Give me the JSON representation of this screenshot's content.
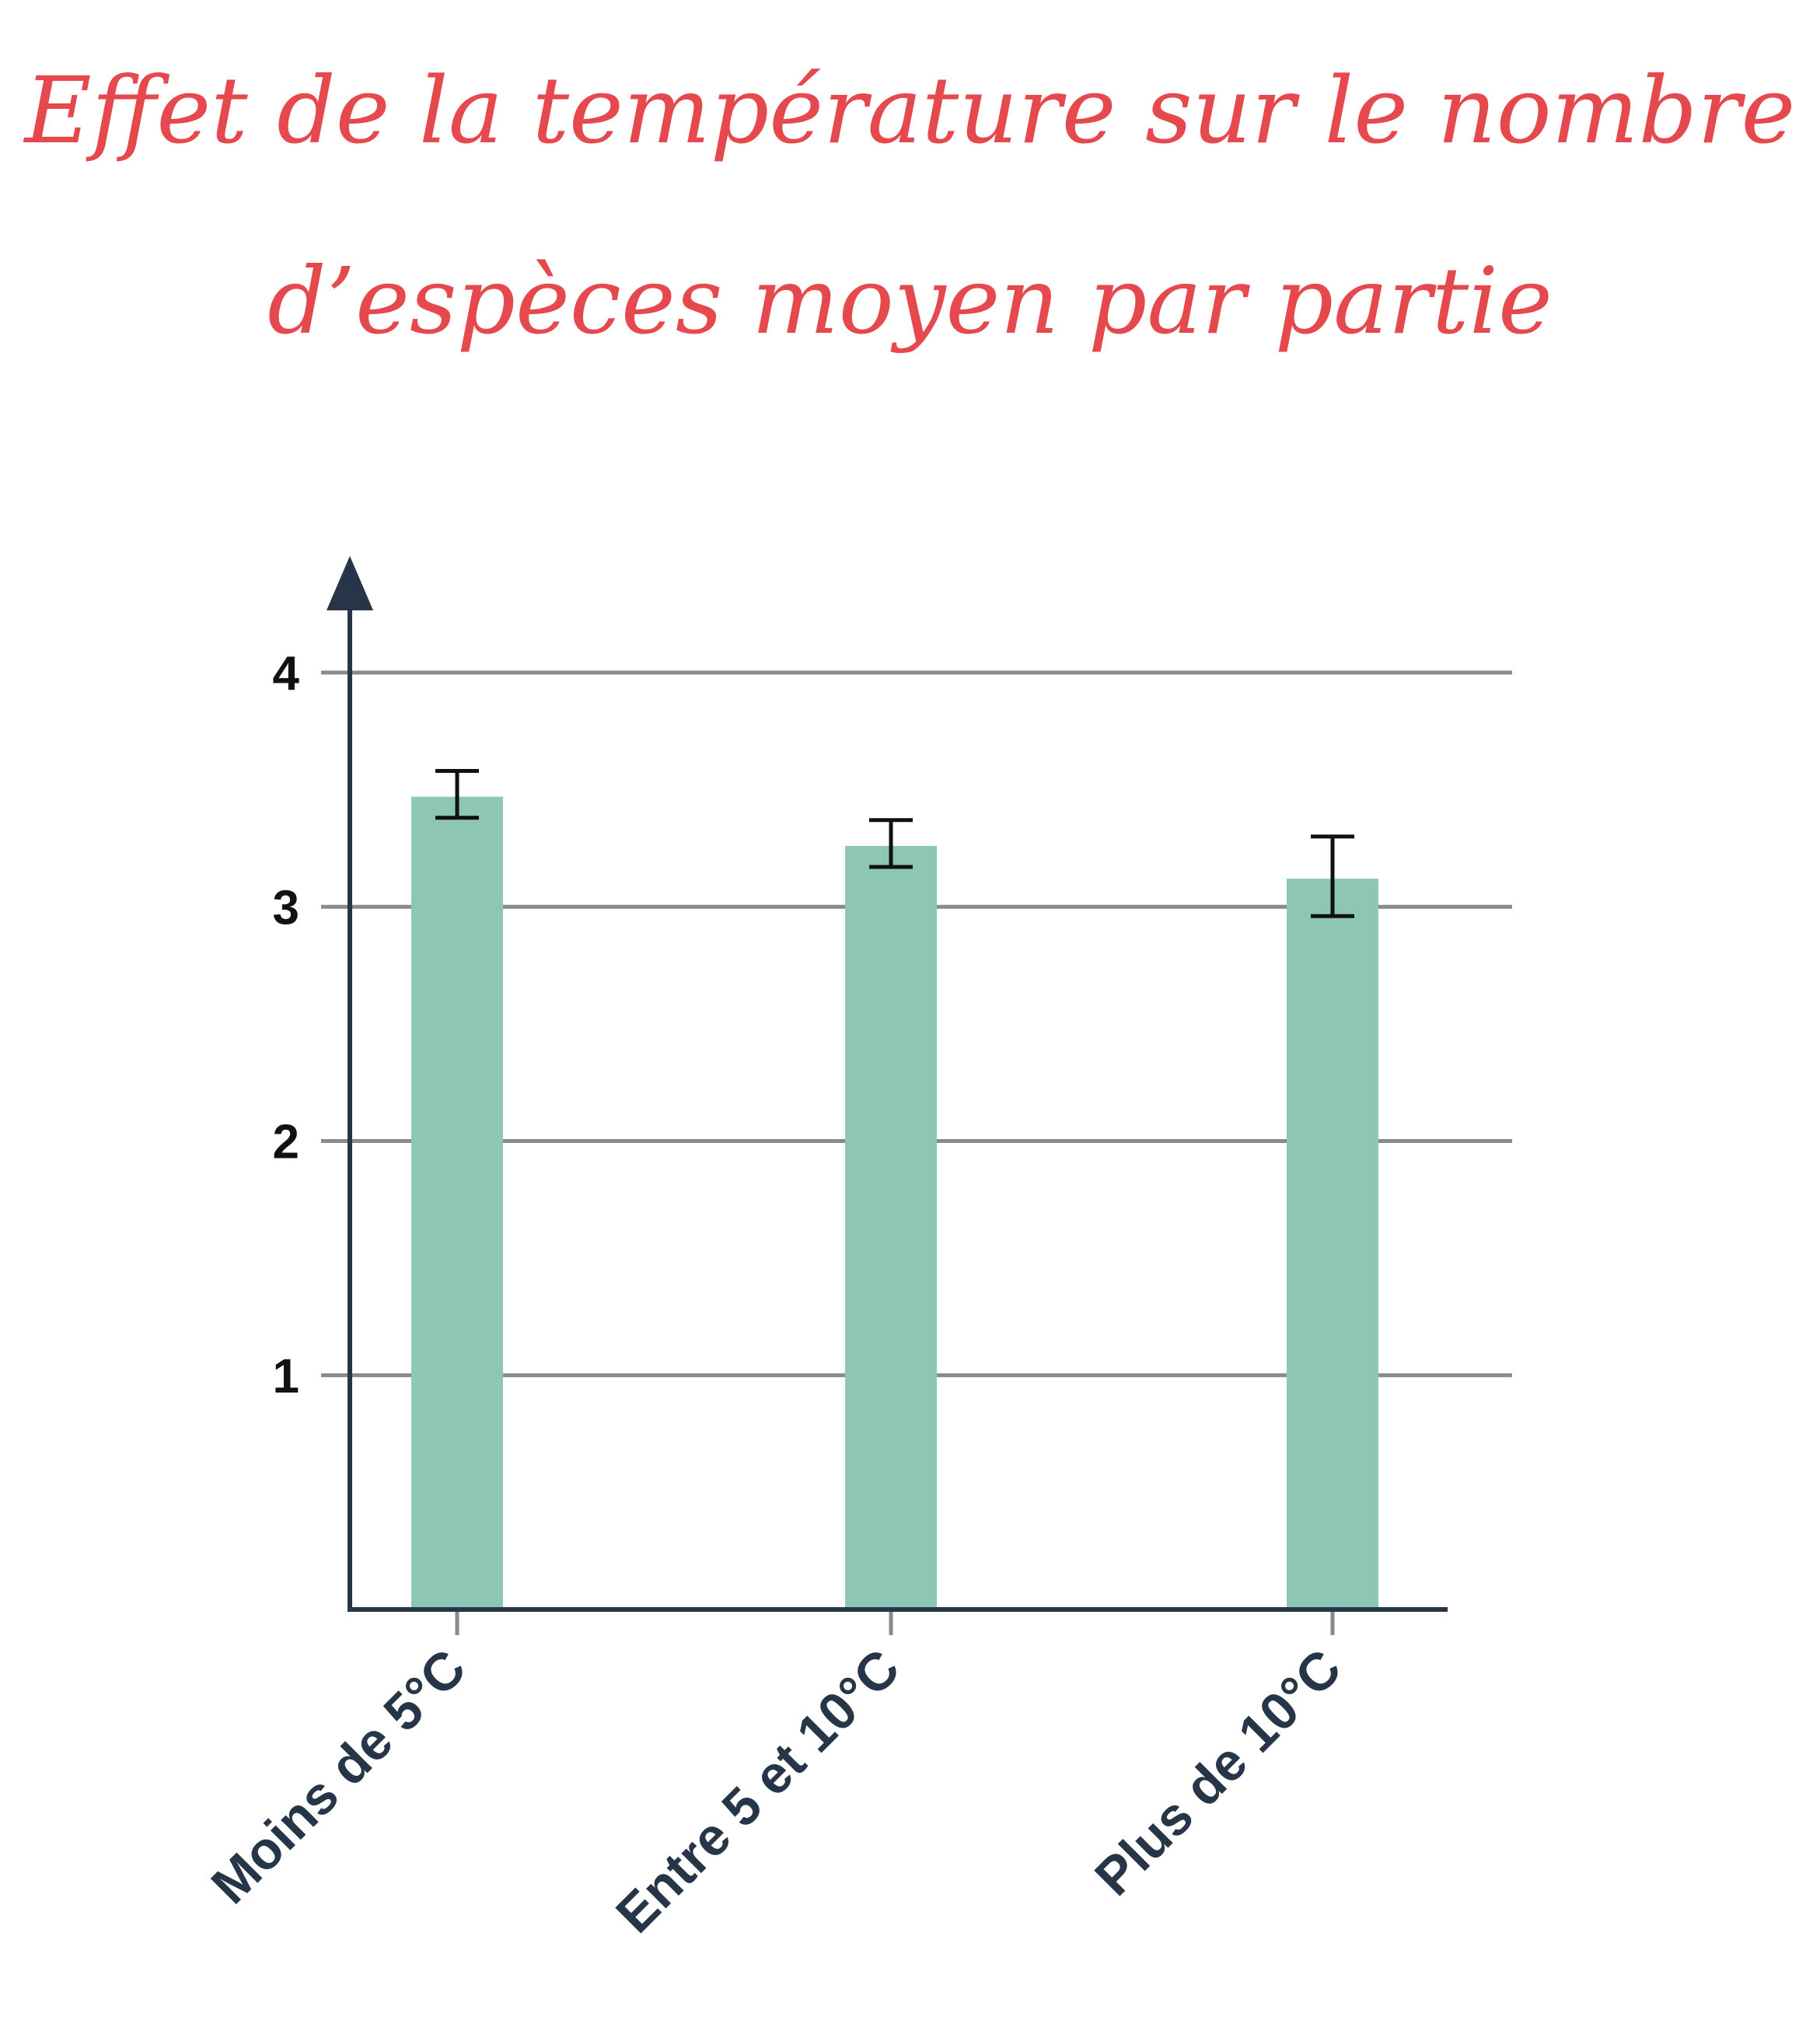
{
  "chart_data": {
    "type": "bar",
    "title_lines": [
      "Effet de la température sur  le nombre",
      "d’espèces moyen par partie"
    ],
    "xlabel": "",
    "ylabel": "",
    "categories": [
      "Moins de 5°C",
      "Entre 5 et 10°C",
      "Plus de 10°C"
    ],
    "values": [
      3.47,
      3.26,
      3.12
    ],
    "error_bars": [
      {
        "low": 3.38,
        "high": 3.58
      },
      {
        "low": 3.17,
        "high": 3.37
      },
      {
        "low": 2.96,
        "high": 3.3
      }
    ],
    "ylim": [
      0,
      4
    ],
    "yticks": [
      1,
      2,
      3,
      4
    ],
    "grid": true,
    "legend": "none",
    "colors": {
      "title": "#e5484d",
      "bar": "#8dc6b5",
      "axis": "#263548",
      "grid": "#8a8a8a",
      "error_bar": "#111111"
    }
  }
}
